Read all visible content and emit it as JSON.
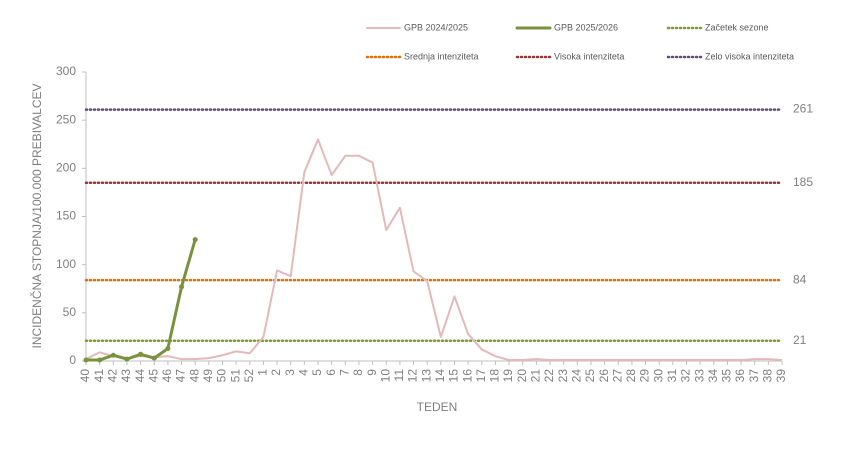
{
  "chart_data": {
    "type": "line",
    "categories": [
      "40",
      "41",
      "42",
      "43",
      "44",
      "45",
      "46",
      "47",
      "48",
      "49",
      "50",
      "51",
      "52",
      "1",
      "2",
      "3",
      "4",
      "5",
      "6",
      "7",
      "8",
      "9",
      "10",
      "11",
      "12",
      "13",
      "14",
      "15",
      "16",
      "17",
      "18",
      "19",
      "20",
      "21",
      "22",
      "23",
      "24",
      "25",
      "26",
      "27",
      "28",
      "29",
      "30",
      "31",
      "32",
      "33",
      "34",
      "35",
      "36",
      "37",
      "38",
      "39"
    ],
    "series": [
      {
        "name": "GPB 2024/2025",
        "color": "#e5b8ba",
        "width": 2,
        "markers": false,
        "values": [
          2,
          9,
          5,
          3,
          5,
          4,
          5,
          2,
          2,
          3,
          6,
          10,
          8,
          25,
          94,
          88,
          196,
          230,
          193,
          213,
          213,
          206,
          136,
          159,
          93,
          83,
          25,
          67,
          28,
          12,
          5,
          1,
          1,
          2,
          1,
          1,
          1,
          1,
          1,
          1,
          1,
          1,
          1,
          1,
          1,
          1,
          1,
          1,
          1,
          2,
          2,
          1
        ]
      },
      {
        "name": "GPB 2025/2026",
        "color": "#77933c",
        "width": 3,
        "markers": true,
        "values": [
          1,
          1,
          6,
          2,
          7,
          3,
          13,
          77,
          126,
          null,
          null,
          null,
          null,
          null,
          null,
          null,
          null,
          null,
          null,
          null,
          null,
          null,
          null,
          null,
          null,
          null,
          null,
          null,
          null,
          null,
          null,
          null,
          null,
          null,
          null,
          null,
          null,
          null,
          null,
          null,
          null,
          null,
          null,
          null,
          null,
          null,
          null,
          null,
          null,
          null,
          null,
          null
        ]
      }
    ],
    "thresholds": [
      {
        "name": "Začetek sezone",
        "color": "#7f9a2e",
        "value": 21
      },
      {
        "name": "Srednja intenziteta",
        "color": "#e46c0a",
        "value": 84
      },
      {
        "name": "Visoka intenziteta",
        "color": "#953735",
        "value": 185
      },
      {
        "name": "Zelo visoka intenziteta",
        "color": "#604a7b",
        "value": 261
      }
    ],
    "ylim": [
      0,
      300
    ],
    "yticks": [
      0,
      50,
      100,
      150,
      200,
      250,
      300
    ],
    "x_label": "TEDEN",
    "y_label": "INCIDENČNA  STOPNJA/100.000  PREBIVALCEV"
  }
}
